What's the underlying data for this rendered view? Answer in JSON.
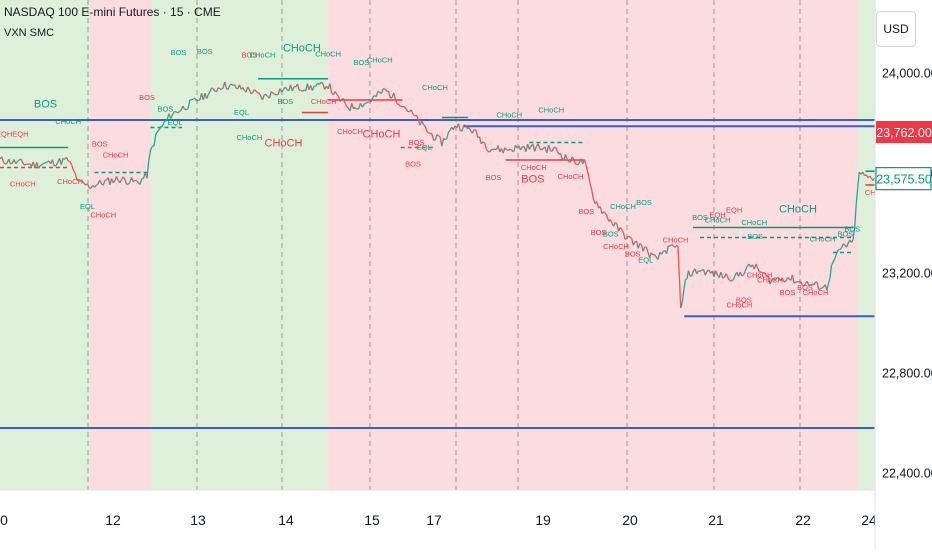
{
  "header": {
    "symbol_title": "NASDAQ 100 E-mini Futures · 15 · CME",
    "indicator_name": "VXN SMC"
  },
  "currency_label": "USD",
  "chart_data": {
    "type": "line",
    "title": "NASDAQ 100 E-mini Futures · 15 · CME",
    "indicator": "VXN SMC",
    "currency": "USD",
    "x_tick_labels": [
      "0",
      "12",
      "13",
      "14",
      "15",
      "17",
      "19",
      "20",
      "21",
      "22",
      "24"
    ],
    "y_ticks": [
      24000,
      23600,
      23200,
      22800,
      22400
    ],
    "y_tick_labels": [
      "24,000.00",
      "23,600.00",
      "23,200.00",
      "22,800.00",
      "22,400.00"
    ],
    "ylim": [
      22330,
      24290
    ],
    "xlim": [
      0,
      1000
    ],
    "grid": true,
    "price_badges": [
      {
        "label": "23,762.00",
        "value": 23762,
        "color": "#f23645"
      },
      {
        "label": "23,575.50",
        "value": 23575.5,
        "color": "#089981"
      }
    ],
    "regime_bands": [
      {
        "x0": 0,
        "x1": 102,
        "regime": "risk-on",
        "color": "#dff0da"
      },
      {
        "x0": 102,
        "x1": 172,
        "regime": "risk-off",
        "color": "#fbdcdf"
      },
      {
        "x0": 172,
        "x1": 375,
        "regime": "risk-on",
        "color": "#dff0da"
      },
      {
        "x0": 375,
        "x1": 980,
        "regime": "risk-off",
        "color": "#fbdcdf"
      },
      {
        "x0": 980,
        "x1": 1000,
        "regime": "risk-on",
        "color": "#dff0da"
      }
    ],
    "price_series": [
      [
        0,
        23650
      ],
      [
        20,
        23640
      ],
      [
        40,
        23630
      ],
      [
        60,
        23640
      ],
      [
        78,
        23650
      ],
      [
        90,
        23560
      ],
      [
        102,
        23545
      ],
      [
        118,
        23560
      ],
      [
        135,
        23575
      ],
      [
        158,
        23560
      ],
      [
        168,
        23590
      ],
      [
        172,
        23680
      ],
      [
        180,
        23760
      ],
      [
        195,
        23830
      ],
      [
        215,
        23870
      ],
      [
        240,
        23920
      ],
      [
        255,
        23950
      ],
      [
        270,
        23940
      ],
      [
        285,
        23930
      ],
      [
        300,
        23900
      ],
      [
        320,
        23930
      ],
      [
        340,
        23940
      ],
      [
        355,
        23940
      ],
      [
        375,
        23950
      ],
      [
        385,
        23900
      ],
      [
        400,
        23860
      ],
      [
        420,
        23880
      ],
      [
        440,
        23930
      ],
      [
        458,
        23880
      ],
      [
        472,
        23830
      ],
      [
        490,
        23760
      ],
      [
        505,
        23720
      ],
      [
        520,
        23790
      ],
      [
        540,
        23770
      ],
      [
        558,
        23700
      ],
      [
        575,
        23690
      ],
      [
        595,
        23700
      ],
      [
        615,
        23700
      ],
      [
        635,
        23690
      ],
      [
        650,
        23650
      ],
      [
        668,
        23640
      ],
      [
        678,
        23500
      ],
      [
        690,
        23440
      ],
      [
        705,
        23380
      ],
      [
        720,
        23330
      ],
      [
        735,
        23300
      ],
      [
        750,
        23250
      ],
      [
        760,
        23290
      ],
      [
        775,
        23300
      ],
      [
        775,
        23280
      ],
      [
        778,
        23050
      ],
      [
        785,
        23190
      ],
      [
        800,
        23210
      ],
      [
        820,
        23190
      ],
      [
        840,
        23180
      ],
      [
        860,
        23230
      ],
      [
        880,
        23170
      ],
      [
        900,
        23180
      ],
      [
        915,
        23160
      ],
      [
        930,
        23150
      ],
      [
        945,
        23140
      ],
      [
        952,
        23240
      ],
      [
        962,
        23300
      ],
      [
        975,
        23320
      ],
      [
        982,
        23600
      ],
      [
        990,
        23580
      ],
      [
        1000,
        23580
      ]
    ],
    "support_resistance_lines": [
      {
        "y": 23810,
        "x0": 0,
        "x1": 1000,
        "color": "#3a5fcd"
      },
      {
        "y": 23785,
        "x0": 530,
        "x1": 1000,
        "color": "#3a5fcd"
      },
      {
        "y": 23025,
        "x0": 782,
        "x1": 1000,
        "color": "#3a5fcd"
      },
      {
        "y": 22578,
        "x0": 0,
        "x1": 1000,
        "color": "#3a5fcd"
      }
    ],
    "structure_lines": [
      {
        "y": 23700,
        "x0": 0,
        "x1": 78,
        "color": "#089981",
        "dashed": false
      },
      {
        "y": 23620,
        "x0": 0,
        "x1": 78,
        "color": "#f23645",
        "dashed": true
      },
      {
        "y": 23600,
        "x0": 108,
        "x1": 168,
        "color": "#089981",
        "dashed": true
      },
      {
        "y": 23780,
        "x0": 172,
        "x1": 208,
        "color": "#089981",
        "dashed": true
      },
      {
        "y": 23975,
        "x0": 295,
        "x1": 375,
        "color": "#089981",
        "dashed": false
      },
      {
        "y": 23890,
        "x0": 375,
        "x1": 460,
        "color": "#f23645",
        "dashed": false
      },
      {
        "y": 23840,
        "x0": 345,
        "x1": 375,
        "color": "#f23645",
        "dashed": false
      },
      {
        "y": 23820,
        "x0": 505,
        "x1": 535,
        "color": "#089981",
        "dashed": false
      },
      {
        "y": 23700,
        "x0": 458,
        "x1": 498,
        "color": "#f23645",
        "dashed": true
      },
      {
        "y": 23720,
        "x0": 605,
        "x1": 668,
        "color": "#089981",
        "dashed": true
      },
      {
        "y": 23650,
        "x0": 578,
        "x1": 668,
        "color": "#f23645",
        "dashed": false
      },
      {
        "y": 23380,
        "x0": 792,
        "x1": 975,
        "color": "#089981",
        "dashed": false
      },
      {
        "y": 23340,
        "x0": 800,
        "x1": 975,
        "color": "#089981",
        "dashed": true
      },
      {
        "y": 23280,
        "x0": 952,
        "x1": 975,
        "color": "#089981",
        "dashed": true
      },
      {
        "y": 23550,
        "x0": 989,
        "x1": 1000,
        "color": "#f23645",
        "dashed": false
      },
      {
        "y": 23605,
        "x0": 989,
        "x1": 1000,
        "color": "#089981",
        "dashed": false
      }
    ],
    "structure_labels": [
      {
        "text": "BOS",
        "x": 52,
        "y": 23860,
        "color": "#089981",
        "size": "medium"
      },
      {
        "text": "EQHEQH",
        "x": 14,
        "y": 23745,
        "color": "#f23645",
        "size": "small"
      },
      {
        "text": "CHoCH",
        "x": 78,
        "y": 23795,
        "color": "#089981",
        "size": "small"
      },
      {
        "text": "CHoCH",
        "x": 26,
        "y": 23545,
        "color": "#f23645",
        "size": "small"
      },
      {
        "text": "CHoCH",
        "x": 80,
        "y": 23555,
        "color": "#f23645",
        "size": "small"
      },
      {
        "text": "EQL",
        "x": 100,
        "y": 23455,
        "color": "#089981",
        "size": "small"
      },
      {
        "text": "CHoCH",
        "x": 118,
        "y": 23420,
        "color": "#f23645",
        "size": "small"
      },
      {
        "text": "BOS",
        "x": 114,
        "y": 23705,
        "color": "#f23645",
        "size": "small"
      },
      {
        "text": "CHoCH",
        "x": 132,
        "y": 23660,
        "color": "#f23645",
        "size": "small"
      },
      {
        "text": "BOS",
        "x": 168,
        "y": 23890,
        "color": "#f23645",
        "size": "small"
      },
      {
        "text": "BOS",
        "x": 204,
        "y": 24070,
        "color": "#089981",
        "size": "small"
      },
      {
        "text": "BOS",
        "x": 234,
        "y": 24075,
        "color": "#089981",
        "size": "small"
      },
      {
        "text": "BOS",
        "x": 189,
        "y": 23845,
        "color": "#089981",
        "size": "small"
      },
      {
        "text": "EQL",
        "x": 200,
        "y": 23790,
        "color": "#089981",
        "size": "small"
      },
      {
        "text": "EQL",
        "x": 276,
        "y": 23830,
        "color": "#089981",
        "size": "small"
      },
      {
        "text": "BOS",
        "x": 285,
        "y": 24060,
        "color": "#f23645",
        "size": "small"
      },
      {
        "text": "CHoCH",
        "x": 300,
        "y": 24060,
        "color": "#089981",
        "size": "small"
      },
      {
        "text": "CHoCH",
        "x": 345,
        "y": 24085,
        "color": "#089981",
        "size": "medium"
      },
      {
        "text": "CHoCH",
        "x": 375,
        "y": 24065,
        "color": "#089981",
        "size": "small"
      },
      {
        "text": "CHoCH",
        "x": 285,
        "y": 23730,
        "color": "#089981",
        "size": "small"
      },
      {
        "text": "CHoCH",
        "x": 324,
        "y": 23705,
        "color": "#f23645",
        "size": "medium"
      },
      {
        "text": "CHoCH",
        "x": 370,
        "y": 23875,
        "color": "#f23645",
        "size": "small"
      },
      {
        "text": "BOS",
        "x": 326,
        "y": 23875,
        "color": "#089981",
        "size": "small"
      },
      {
        "text": "CHoCH",
        "x": 400,
        "y": 23755,
        "color": "#f23645",
        "size": "small"
      },
      {
        "text": "BOS",
        "x": 413,
        "y": 24030,
        "color": "#089981",
        "size": "small"
      },
      {
        "text": "CHoCH",
        "x": 434,
        "y": 24040,
        "color": "#089981",
        "size": "small"
      },
      {
        "text": "CHoCH",
        "x": 436,
        "y": 23740,
        "color": "#f23645",
        "size": "medium"
      },
      {
        "text": "BOS",
        "x": 476,
        "y": 23710,
        "color": "#f23645",
        "size": "small"
      },
      {
        "text": "EQL",
        "x": 485,
        "y": 23690,
        "color": "#089981",
        "size": "small"
      },
      {
        "text": "BOS",
        "x": 472,
        "y": 23625,
        "color": "#f23645",
        "size": "small"
      },
      {
        "text": "CHoCH",
        "x": 497,
        "y": 23930,
        "color": "#089981",
        "size": "small"
      },
      {
        "text": "BOS",
        "x": 564,
        "y": 23570,
        "color": "#f23645",
        "size": "small"
      },
      {
        "text": "CHoCH",
        "x": 582,
        "y": 23820,
        "color": "#089981",
        "size": "small"
      },
      {
        "text": "CHoCH",
        "x": 610,
        "y": 23610,
        "color": "#f23645",
        "size": "small"
      },
      {
        "text": "BOS",
        "x": 609,
        "y": 23560,
        "color": "#f23645",
        "size": "medium"
      },
      {
        "text": "CHoCH",
        "x": 630,
        "y": 23840,
        "color": "#089981",
        "size": "small"
      },
      {
        "text": "CHoCH",
        "x": 652,
        "y": 23575,
        "color": "#f23645",
        "size": "small"
      },
      {
        "text": "CHoCH",
        "x": 712,
        "y": 23455,
        "color": "#089981",
        "size": "small"
      },
      {
        "text": "BOS",
        "x": 736,
        "y": 23470,
        "color": "#089981",
        "size": "small"
      },
      {
        "text": "BOS",
        "x": 670,
        "y": 23435,
        "color": "#f23645",
        "size": "small"
      },
      {
        "text": "BOS",
        "x": 684,
        "y": 23350,
        "color": "#f23645",
        "size": "small"
      },
      {
        "text": "BOS",
        "x": 698,
        "y": 23345,
        "color": "#089981",
        "size": "small"
      },
      {
        "text": "CHoCH",
        "x": 704,
        "y": 23295,
        "color": "#f23645",
        "size": "small"
      },
      {
        "text": "BOS",
        "x": 723,
        "y": 23265,
        "color": "#f23645",
        "size": "small"
      },
      {
        "text": "EQL",
        "x": 738,
        "y": 23240,
        "color": "#089981",
        "size": "small"
      },
      {
        "text": "CHoCH",
        "x": 772,
        "y": 23320,
        "color": "#f23645",
        "size": "small"
      },
      {
        "text": "BOS",
        "x": 800,
        "y": 23410,
        "color": "#089981",
        "size": "small"
      },
      {
        "text": "EQH",
        "x": 820,
        "y": 23420,
        "color": "#f23645",
        "size": "small"
      },
      {
        "text": "CHoCH",
        "x": 820,
        "y": 23400,
        "color": "#089981",
        "size": "small"
      },
      {
        "text": "EQH",
        "x": 839,
        "y": 23440,
        "color": "#f23645",
        "size": "small"
      },
      {
        "text": "CHoCH",
        "x": 862,
        "y": 23390,
        "color": "#089981",
        "size": "small"
      },
      {
        "text": "BOS",
        "x": 863,
        "y": 23335,
        "color": "#089981",
        "size": "small"
      },
      {
        "text": "CHoCH",
        "x": 912,
        "y": 23440,
        "color": "#089981",
        "size": "medium"
      },
      {
        "text": "CHoCH",
        "x": 940,
        "y": 23325,
        "color": "#089981",
        "size": "small"
      },
      {
        "text": "BOS",
        "x": 966,
        "y": 23345,
        "color": "#089981",
        "size": "small"
      },
      {
        "text": "BOS",
        "x": 974,
        "y": 23365,
        "color": "#089981",
        "size": "small"
      },
      {
        "text": "CHoCH",
        "x": 868,
        "y": 23180,
        "color": "#f23645",
        "size": "small"
      },
      {
        "text": "CHoCH",
        "x": 880,
        "y": 23160,
        "color": "#f23645",
        "size": "small"
      },
      {
        "text": "BOS",
        "x": 900,
        "y": 23110,
        "color": "#f23645",
        "size": "small"
      },
      {
        "text": "BOS",
        "x": 920,
        "y": 23130,
        "color": "#f23645",
        "size": "small"
      },
      {
        "text": "CHoCH",
        "x": 932,
        "y": 23110,
        "color": "#f23645",
        "size": "small"
      },
      {
        "text": "CHoCH",
        "x": 845,
        "y": 23060,
        "color": "#f23645",
        "size": "small"
      },
      {
        "text": "BOS",
        "x": 850,
        "y": 23080,
        "color": "#f23645",
        "size": "small"
      },
      {
        "text": "CHoC",
        "x": 1000,
        "y": 23510,
        "color": "#f23645",
        "size": "small"
      }
    ]
  }
}
